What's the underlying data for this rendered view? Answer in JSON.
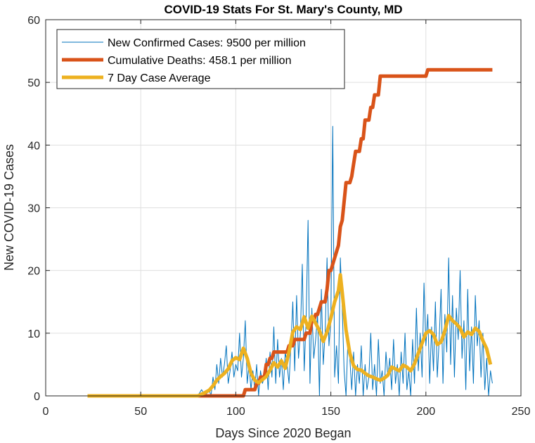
{
  "chart_data": {
    "type": "line",
    "title": "COVID-19 Stats For St. Mary's County, MD",
    "xlabel": "Days Since 2020 Began",
    "ylabel": "New COVID-19 Cases",
    "xlim": [
      0,
      250
    ],
    "ylim": [
      0,
      60
    ],
    "xticks": [
      0,
      50,
      100,
      150,
      200,
      250
    ],
    "yticks": [
      0,
      10,
      20,
      30,
      40,
      50,
      60
    ],
    "grid": true,
    "legend_position": "top-left",
    "series": [
      {
        "name": "New Confirmed Cases: 9500 per million",
        "color": "#0072BD",
        "line_style": "thin",
        "points": [
          [
            22,
            0
          ],
          [
            30,
            0
          ],
          [
            40,
            0
          ],
          [
            50,
            0
          ],
          [
            60,
            0
          ],
          [
            70,
            0
          ],
          [
            80,
            0
          ],
          [
            82,
            1
          ],
          [
            84,
            0
          ],
          [
            86,
            1
          ],
          [
            87,
            0
          ],
          [
            88,
            3
          ],
          [
            89,
            1
          ],
          [
            90,
            5
          ],
          [
            91,
            2
          ],
          [
            92,
            6
          ],
          [
            93,
            3
          ],
          [
            94,
            5
          ],
          [
            95,
            8
          ],
          [
            96,
            2
          ],
          [
            97,
            4
          ],
          [
            98,
            7
          ],
          [
            99,
            3
          ],
          [
            100,
            5
          ],
          [
            101,
            4
          ],
          [
            102,
            10
          ],
          [
            103,
            3
          ],
          [
            104,
            6
          ],
          [
            105,
            12
          ],
          [
            106,
            2
          ],
          [
            107,
            5
          ],
          [
            108,
            1
          ],
          [
            109,
            4
          ],
          [
            110,
            1
          ],
          [
            111,
            5
          ],
          [
            112,
            0
          ],
          [
            113,
            4
          ],
          [
            114,
            2
          ],
          [
            115,
            3
          ],
          [
            116,
            6
          ],
          [
            117,
            1
          ],
          [
            118,
            7
          ],
          [
            119,
            3
          ],
          [
            120,
            11
          ],
          [
            121,
            2
          ],
          [
            122,
            9
          ],
          [
            123,
            3
          ],
          [
            124,
            6
          ],
          [
            125,
            1
          ],
          [
            126,
            7
          ],
          [
            127,
            5
          ],
          [
            128,
            2
          ],
          [
            129,
            8
          ],
          [
            130,
            15
          ],
          [
            131,
            4
          ],
          [
            132,
            16
          ],
          [
            133,
            6
          ],
          [
            134,
            10
          ],
          [
            135,
            21
          ],
          [
            136,
            4
          ],
          [
            137,
            12
          ],
          [
            138,
            28
          ],
          [
            139,
            2
          ],
          [
            140,
            14
          ],
          [
            141,
            6
          ],
          [
            142,
            9
          ],
          [
            143,
            13
          ],
          [
            144,
            0
          ],
          [
            145,
            17
          ],
          [
            146,
            5
          ],
          [
            147,
            10
          ],
          [
            148,
            22
          ],
          [
            149,
            8
          ],
          [
            150,
            12
          ],
          [
            151,
            43
          ],
          [
            152,
            3
          ],
          [
            153,
            8
          ],
          [
            154,
            2
          ],
          [
            155,
            22
          ],
          [
            156,
            14
          ],
          [
            157,
            4
          ],
          [
            158,
            0
          ],
          [
            159,
            9
          ],
          [
            160,
            6
          ],
          [
            161,
            1
          ],
          [
            162,
            7
          ],
          [
            163,
            0
          ],
          [
            164,
            5
          ],
          [
            165,
            2
          ],
          [
            166,
            8
          ],
          [
            167,
            0
          ],
          [
            168,
            5
          ],
          [
            169,
            1
          ],
          [
            170,
            3
          ],
          [
            171,
            10
          ],
          [
            172,
            1
          ],
          [
            173,
            5
          ],
          [
            174,
            0
          ],
          [
            175,
            9
          ],
          [
            176,
            2
          ],
          [
            177,
            4
          ],
          [
            178,
            0
          ],
          [
            179,
            7
          ],
          [
            180,
            3
          ],
          [
            181,
            6
          ],
          [
            182,
            1
          ],
          [
            183,
            9
          ],
          [
            184,
            2
          ],
          [
            185,
            5
          ],
          [
            186,
            0
          ],
          [
            187,
            7
          ],
          [
            188,
            2
          ],
          [
            189,
            10
          ],
          [
            190,
            1
          ],
          [
            191,
            4
          ],
          [
            192,
            0
          ],
          [
            193,
            9
          ],
          [
            194,
            2
          ],
          [
            195,
            14
          ],
          [
            196,
            4
          ],
          [
            197,
            10
          ],
          [
            198,
            3
          ],
          [
            199,
            18
          ],
          [
            200,
            8
          ],
          [
            201,
            13
          ],
          [
            202,
            2
          ],
          [
            203,
            11
          ],
          [
            204,
            4
          ],
          [
            205,
            15
          ],
          [
            206,
            3
          ],
          [
            207,
            9
          ],
          [
            208,
            17
          ],
          [
            209,
            2
          ],
          [
            210,
            13
          ],
          [
            211,
            7
          ],
          [
            212,
            22
          ],
          [
            213,
            5
          ],
          [
            214,
            16
          ],
          [
            215,
            3
          ],
          [
            216,
            14
          ],
          [
            217,
            9
          ],
          [
            218,
            20
          ],
          [
            219,
            6
          ],
          [
            220,
            12
          ],
          [
            221,
            1
          ],
          [
            222,
            17
          ],
          [
            223,
            4
          ],
          [
            224,
            11
          ],
          [
            225,
            2
          ],
          [
            226,
            16
          ],
          [
            227,
            8
          ],
          [
            228,
            12
          ],
          [
            229,
            3
          ],
          [
            230,
            10
          ],
          [
            231,
            1
          ],
          [
            232,
            6
          ],
          [
            233,
            0
          ],
          [
            234,
            4
          ],
          [
            235,
            2
          ]
        ]
      },
      {
        "name": "Cumulative Deaths: 458.1 per million",
        "color": "#D95319",
        "line_style": "thick",
        "points": [
          [
            22,
            0
          ],
          [
            104,
            0
          ],
          [
            105,
            1
          ],
          [
            110,
            1
          ],
          [
            111,
            2
          ],
          [
            112,
            2
          ],
          [
            113,
            3
          ],
          [
            115,
            3
          ],
          [
            116,
            5
          ],
          [
            117,
            5
          ],
          [
            118,
            6
          ],
          [
            119,
            6
          ],
          [
            120,
            7
          ],
          [
            127,
            7
          ],
          [
            128,
            8
          ],
          [
            130,
            8
          ],
          [
            131,
            9
          ],
          [
            136,
            9
          ],
          [
            137,
            10
          ],
          [
            139,
            10
          ],
          [
            140,
            12
          ],
          [
            141,
            12
          ],
          [
            142,
            13
          ],
          [
            143,
            13
          ],
          [
            144,
            14
          ],
          [
            145,
            15
          ],
          [
            147,
            15
          ],
          [
            148,
            17
          ],
          [
            149,
            20
          ],
          [
            150,
            20
          ],
          [
            151,
            21
          ],
          [
            152,
            22
          ],
          [
            153,
            23
          ],
          [
            154,
            24
          ],
          [
            155,
            27
          ],
          [
            156,
            28
          ],
          [
            157,
            31
          ],
          [
            158,
            34
          ],
          [
            160,
            34
          ],
          [
            161,
            35
          ],
          [
            162,
            37
          ],
          [
            163,
            39
          ],
          [
            165,
            39
          ],
          [
            166,
            41
          ],
          [
            167,
            41
          ],
          [
            168,
            44
          ],
          [
            170,
            44
          ],
          [
            171,
            46
          ],
          [
            172,
            46
          ],
          [
            173,
            48
          ],
          [
            175,
            48
          ],
          [
            176,
            51
          ],
          [
            200,
            51
          ],
          [
            201,
            52
          ],
          [
            235,
            52
          ]
        ]
      },
      {
        "name": "7 Day Case Average",
        "color": "#EDB120",
        "line_style": "thick",
        "points": [
          [
            22,
            0
          ],
          [
            80,
            0
          ],
          [
            83,
            0.4
          ],
          [
            86,
            0.9
          ],
          [
            88,
            1.6
          ],
          [
            90,
            2.5
          ],
          [
            92,
            3.1
          ],
          [
            94,
            3.6
          ],
          [
            96,
            4.3
          ],
          [
            98,
            5.6
          ],
          [
            100,
            6.1
          ],
          [
            102,
            5.8
          ],
          [
            104,
            7.6
          ],
          [
            106,
            6.0
          ],
          [
            108,
            3.6
          ],
          [
            110,
            2.5
          ],
          [
            112,
            2.1
          ],
          [
            114,
            2.6
          ],
          [
            116,
            3.1
          ],
          [
            118,
            4.1
          ],
          [
            120,
            5.3
          ],
          [
            122,
            4.6
          ],
          [
            124,
            5.6
          ],
          [
            126,
            4.4
          ],
          [
            128,
            7.0
          ],
          [
            130,
            10.2
          ],
          [
            132,
            11.0
          ],
          [
            134,
            10.6
          ],
          [
            136,
            12.6
          ],
          [
            138,
            10.8
          ],
          [
            140,
            12.7
          ],
          [
            142,
            11.6
          ],
          [
            144,
            10.4
          ],
          [
            146,
            8.7
          ],
          [
            148,
            10.2
          ],
          [
            150,
            12.4
          ],
          [
            152,
            15.0
          ],
          [
            154,
            16.8
          ],
          [
            155,
            19.3
          ],
          [
            156,
            16.5
          ],
          [
            158,
            10.5
          ],
          [
            160,
            6.8
          ],
          [
            162,
            4.8
          ],
          [
            164,
            4.2
          ],
          [
            166,
            4.1
          ],
          [
            168,
            3.6
          ],
          [
            170,
            3.2
          ],
          [
            172,
            3.0
          ],
          [
            174,
            2.7
          ],
          [
            176,
            2.5
          ],
          [
            178,
            2.8
          ],
          [
            180,
            3.3
          ],
          [
            182,
            4.6
          ],
          [
            184,
            4.3
          ],
          [
            186,
            4.0
          ],
          [
            188,
            4.9
          ],
          [
            190,
            4.6
          ],
          [
            192,
            4.0
          ],
          [
            194,
            5.1
          ],
          [
            196,
            6.8
          ],
          [
            198,
            8.4
          ],
          [
            200,
            10.0
          ],
          [
            202,
            10.4
          ],
          [
            204,
            9.8
          ],
          [
            206,
            8.2
          ],
          [
            208,
            8.6
          ],
          [
            210,
            10.4
          ],
          [
            212,
            12.8
          ],
          [
            214,
            12.0
          ],
          [
            216,
            11.5
          ],
          [
            218,
            10.8
          ],
          [
            220,
            9.4
          ],
          [
            222,
            10.2
          ],
          [
            224,
            9.8
          ],
          [
            226,
            10.8
          ],
          [
            228,
            10.3
          ],
          [
            230,
            8.8
          ],
          [
            232,
            7.5
          ],
          [
            234,
            5.0
          ]
        ]
      }
    ]
  }
}
